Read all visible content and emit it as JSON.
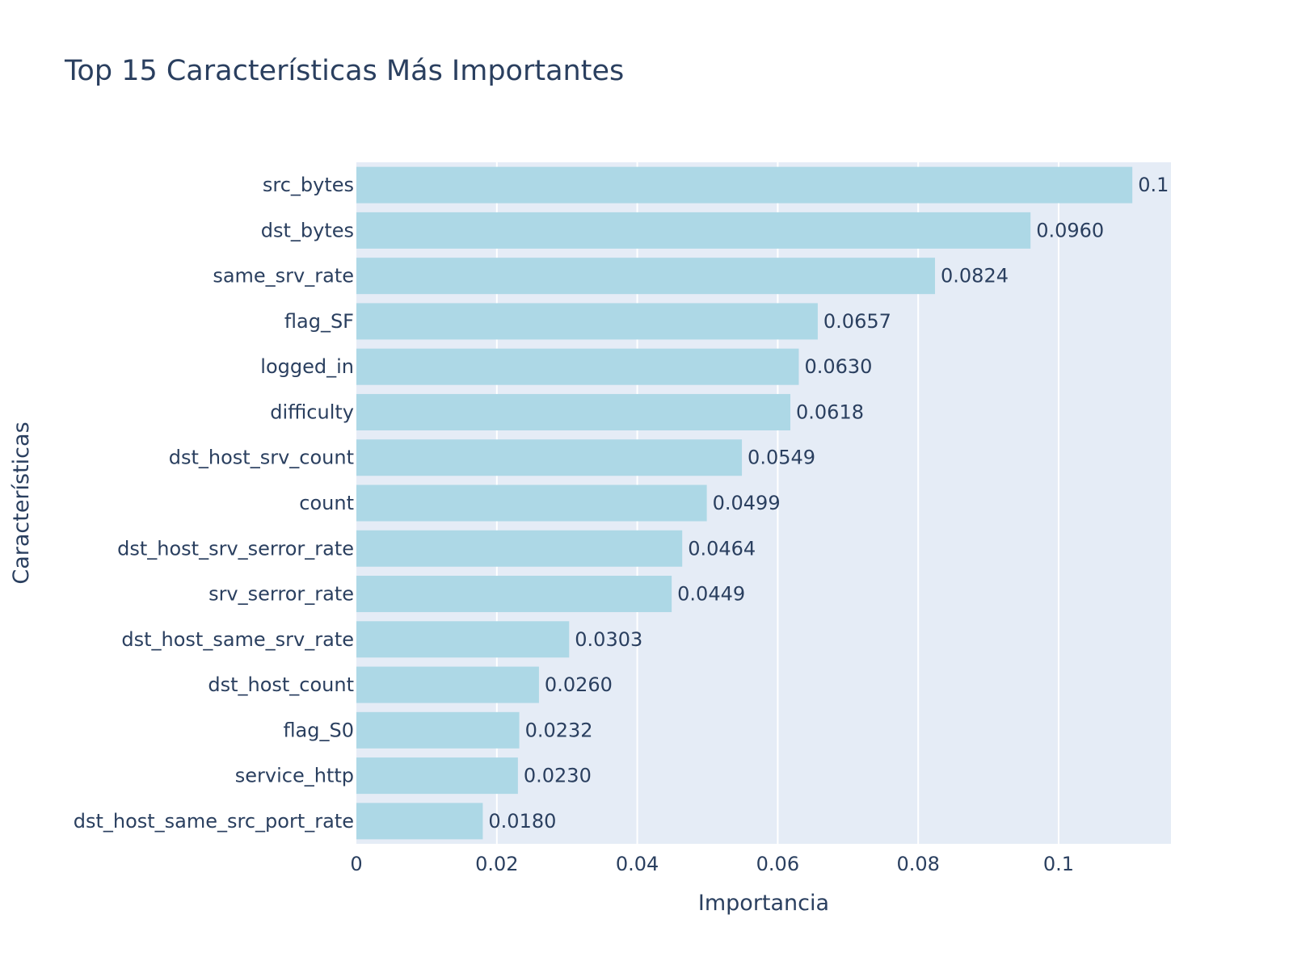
{
  "chart_data": {
    "type": "bar",
    "orientation": "horizontal",
    "title": "Top 15 Características Más Importantes",
    "xlabel": "Importancia",
    "ylabel": "Características",
    "categories": [
      "src_bytes",
      "dst_bytes",
      "same_srv_rate",
      "flag_SF",
      "logged_in",
      "difficulty",
      "dst_host_srv_count",
      "count",
      "dst_host_srv_serror_rate",
      "srv_serror_rate",
      "dst_host_same_srv_rate",
      "dst_host_count",
      "flag_S0",
      "service_http",
      "dst_host_same_src_port_rate"
    ],
    "values": [
      0.1105,
      0.096,
      0.0824,
      0.0657,
      0.063,
      0.0618,
      0.0549,
      0.0499,
      0.0464,
      0.0449,
      0.0303,
      0.026,
      0.0232,
      0.023,
      0.018
    ],
    "value_labels": [
      "0.1105",
      "0.0960",
      "0.0824",
      "0.0657",
      "0.0630",
      "0.0618",
      "0.0549",
      "0.0499",
      "0.0464",
      "0.0449",
      "0.0303",
      "0.0260",
      "0.0232",
      "0.0230",
      "0.0180"
    ],
    "xlim": [
      0,
      0.116
    ],
    "xticks": [
      0,
      0.02,
      0.04,
      0.06,
      0.08,
      0.1
    ],
    "xtick_labels": [
      "0",
      "0.02",
      "0.04",
      "0.06",
      "0.08",
      "0.1"
    ],
    "grid": true,
    "colors": {
      "bar": "#add8e6",
      "plot_background": "#e5ecf6",
      "grid": "#ffffff",
      "text": "#2a3f5f"
    }
  }
}
